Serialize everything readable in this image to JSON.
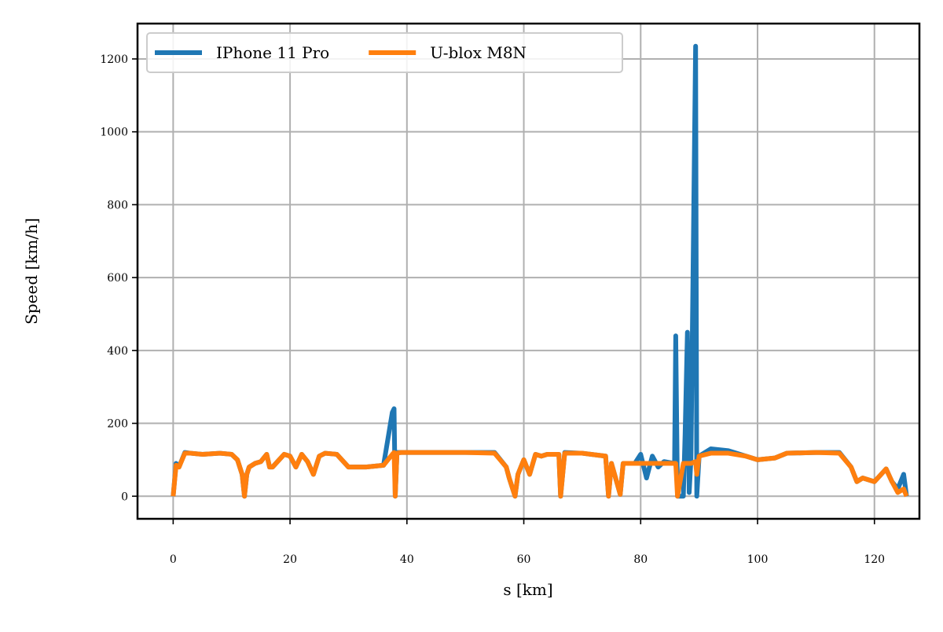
{
  "chart_data": {
    "type": "line",
    "xlabel": "s [km]",
    "ylabel": "Speed [km/h]",
    "x": [
      0,
      0.5,
      1,
      2,
      3,
      5,
      8,
      10,
      11,
      11.8,
      12.2,
      12.6,
      13,
      14,
      15,
      16,
      16.5,
      17,
      19,
      20,
      21,
      22,
      23,
      24,
      25,
      26,
      28,
      30,
      33,
      36,
      37.5,
      37.8,
      38,
      38.3,
      39,
      45,
      50,
      55,
      57,
      57.5,
      58.5,
      59,
      60,
      61,
      62,
      63,
      64,
      66,
      66.3,
      67,
      70,
      74,
      74.5,
      75,
      76.5,
      77,
      79,
      80,
      81,
      82,
      83,
      84,
      85.8,
      86,
      86.3,
      87.3,
      87.6,
      88,
      88.3,
      88.6,
      89.4,
      89.6,
      90,
      92,
      95,
      98,
      100,
      103,
      105,
      110,
      114,
      116,
      117,
      118,
      120,
      122,
      123,
      124,
      125,
      125.5
    ],
    "series": [
      {
        "name": "IPhone 11 Pro",
        "color": "#1f77b4",
        "values": [
          0,
          90,
          80,
          120,
          118,
          115,
          118,
          115,
          100,
          60,
          0,
          60,
          80,
          90,
          95,
          115,
          80,
          80,
          115,
          110,
          80,
          115,
          95,
          60,
          110,
          118,
          115,
          80,
          80,
          85,
          230,
          240,
          0,
          120,
          120,
          120,
          120,
          120,
          80,
          50,
          0,
          60,
          100,
          60,
          115,
          110,
          115,
          115,
          0,
          120,
          118,
          110,
          0,
          90,
          5,
          90,
          90,
          115,
          50,
          110,
          80,
          95,
          90,
          440,
          0,
          0,
          170,
          450,
          10,
          100,
          1235,
          0,
          110,
          130,
          125,
          110,
          100,
          105,
          118,
          120,
          120,
          80,
          40,
          50,
          40,
          75,
          40,
          20,
          60,
          0
        ]
      },
      {
        "name": "U-blox M8N",
        "color": "#ff7f0e",
        "values": [
          0,
          85,
          80,
          118,
          118,
          115,
          118,
          115,
          100,
          60,
          0,
          60,
          80,
          90,
          95,
          115,
          80,
          80,
          115,
          110,
          80,
          115,
          95,
          60,
          110,
          118,
          115,
          80,
          80,
          85,
          115,
          120,
          0,
          118,
          120,
          120,
          120,
          118,
          80,
          50,
          0,
          60,
          100,
          60,
          115,
          110,
          115,
          115,
          0,
          118,
          118,
          110,
          0,
          90,
          5,
          90,
          90,
          90,
          90,
          90,
          90,
          90,
          90,
          90,
          0,
          90,
          90,
          90,
          90,
          90,
          95,
          60,
          110,
          118,
          118,
          110,
          100,
          105,
          118,
          120,
          118,
          80,
          40,
          50,
          40,
          75,
          40,
          10,
          20,
          0
        ]
      }
    ],
    "xlim": [
      -6.1,
      127.7
    ],
    "ylim": [
      -62,
      1297
    ],
    "xticks": [
      0,
      20,
      40,
      60,
      80,
      100,
      120
    ],
    "yticks": [
      0,
      200,
      400,
      600,
      800,
      1000,
      1200
    ],
    "grid": true,
    "legend": "upper left"
  }
}
